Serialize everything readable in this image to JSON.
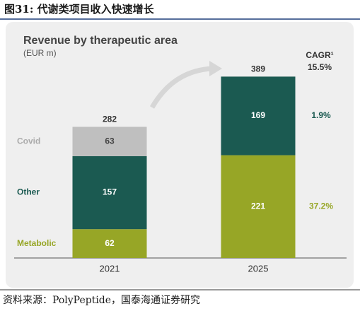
{
  "header": {
    "title": "图31:  代谢类项目收入快速增长"
  },
  "chart_data": {
    "type": "stacked-bar",
    "title": "Revenue by therapeutic area",
    "subtitle": "(EUR m)",
    "categories": [
      "2021",
      "2025"
    ],
    "series": [
      {
        "name": "Metabolic",
        "color": "#97a626",
        "values": [
          62,
          221
        ],
        "cagr": "37.2%"
      },
      {
        "name": "Other",
        "color": "#1b5a51",
        "values": [
          157,
          169
        ],
        "cagr": "1.9%"
      },
      {
        "name": "Covid",
        "color": "#bfbfbf",
        "values": [
          63,
          null
        ]
      }
    ],
    "totals": [
      282,
      389
    ],
    "cagr_title": "CAGR¹",
    "cagr_total": "15.5%"
  },
  "footer": {
    "source": "资料来源：PolyPeptide，国泰海通证券研究"
  }
}
